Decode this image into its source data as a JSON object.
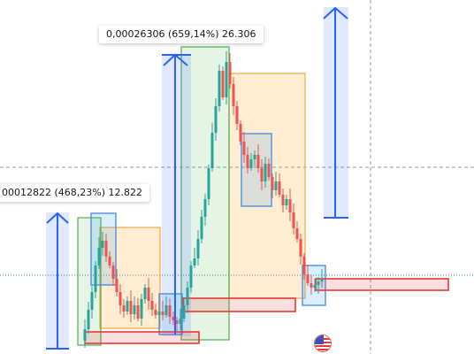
{
  "annotations": {
    "top_measure": "0,00026306 (659,14%) 26.306",
    "left_measure": "00012822 (468,23%) 12.822"
  },
  "icons": {
    "flag": "us-flag-icon"
  },
  "colors": {
    "candle_up": "#26a69a",
    "candle_down": "#ef5350",
    "measure_blue": "#2962ff",
    "range_green": "#4caf50",
    "range_orange": "#ff9800",
    "box_blue": "#2196f3",
    "box_red": "#e53935",
    "crosshair": "#9598a1",
    "baseline": "#2a7ab5"
  }
}
